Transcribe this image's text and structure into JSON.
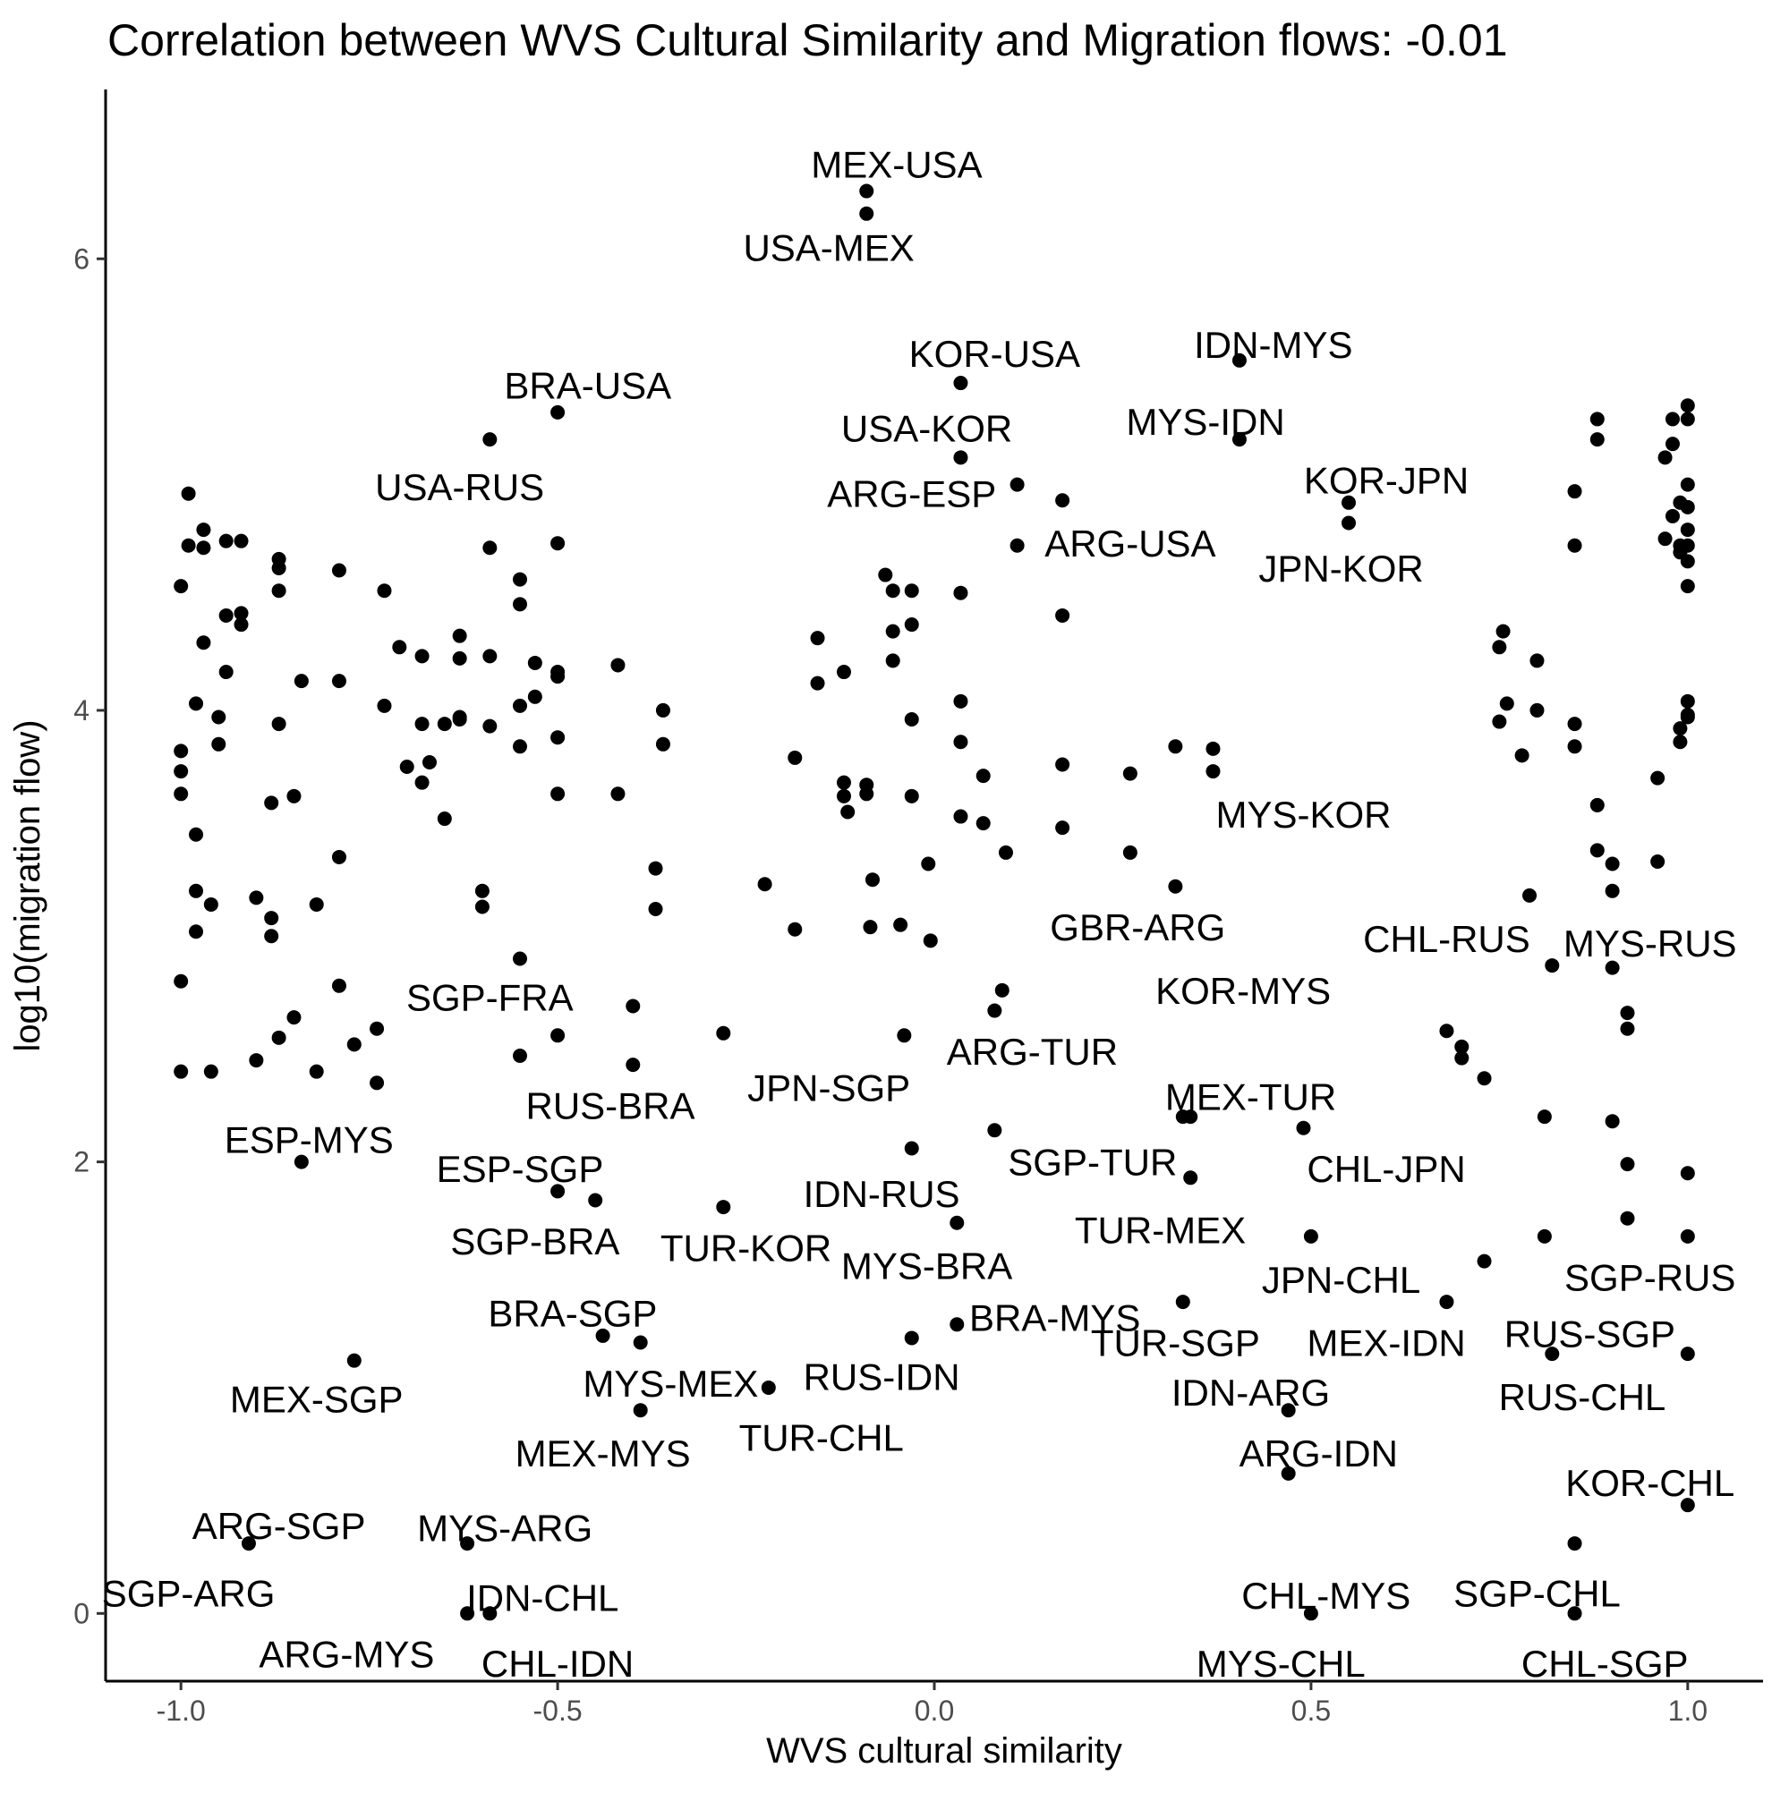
{
  "chart_data": {
    "type": "scatter",
    "title": "Correlation between WVS Cultural Similarity and Migration flows: -0.01",
    "xlabel": "WVS cultural similarity",
    "ylabel": "log10(migration flow)",
    "xlim": [
      -1.1,
      1.1
    ],
    "ylim": [
      -0.3,
      6.75
    ],
    "xticks": [
      -1.0,
      -0.5,
      0.0,
      0.5,
      1.0
    ],
    "xtick_labels": [
      "-1.0",
      "-0.5",
      "0.0",
      "0.5",
      "1.0"
    ],
    "yticks": [
      0,
      2,
      4,
      6
    ],
    "ytick_labels": [
      "0",
      "2",
      "4",
      "6"
    ],
    "grid": false,
    "legend": "none",
    "point_color": "#000000",
    "labeled_points": [
      {
        "label": "MEX-USA",
        "x": -0.09,
        "y": 6.3,
        "text_x": -0.05,
        "text_y": 6.42
      },
      {
        "label": "USA-MEX",
        "x": -0.09,
        "y": 6.2,
        "text_x": -0.14,
        "text_y": 6.05
      },
      {
        "label": "KOR-USA",
        "x": 0.035,
        "y": 5.45,
        "text_x": 0.08,
        "text_y": 5.58
      },
      {
        "label": "USA-KOR",
        "x": 0.035,
        "y": 5.12,
        "text_x": -0.01,
        "text_y": 5.25
      },
      {
        "label": "IDN-MYS",
        "x": 0.405,
        "y": 5.55,
        "text_x": 0.45,
        "text_y": 5.62
      },
      {
        "label": "MYS-IDN",
        "x": 0.405,
        "y": 5.2,
        "text_x": 0.36,
        "text_y": 5.28
      },
      {
        "label": "BRA-USA",
        "x": -0.5,
        "y": 5.32,
        "text_x": -0.46,
        "text_y": 5.44
      },
      {
        "label": "USA-RUS",
        "x": -0.59,
        "y": 5.2,
        "text_x": -0.63,
        "text_y": 4.99
      },
      {
        "label": "ARG-ESP",
        "x": 0.11,
        "y": 5.0,
        "text_x": -0.03,
        "text_y": 4.96
      },
      {
        "label": "ARG-USA",
        "x": 0.11,
        "y": 4.73,
        "text_x": 0.26,
        "text_y": 4.74
      },
      {
        "label": "KOR-JPN",
        "x": 0.55,
        "y": 4.92,
        "text_x": 0.6,
        "text_y": 5.02
      },
      {
        "label": "JPN-KOR",
        "x": 0.55,
        "y": 4.83,
        "text_x": 0.54,
        "text_y": 4.63
      },
      {
        "label": "MYS-KOR",
        "x": 0.45,
        "y": 3.45,
        "text_x": 0.49,
        "text_y": 3.54
      },
      {
        "label": "GBR-ARG",
        "x": 0.45,
        "y": 2.98,
        "text_x": 0.27,
        "text_y": 3.04
      },
      {
        "label": "KOR-MYS",
        "x": 0.45,
        "y": 2.98,
        "text_x": 0.41,
        "text_y": 2.76
      },
      {
        "label": "CHL-RUS",
        "x": 0.79,
        "y": 3.18,
        "text_x": 0.68,
        "text_y": 2.99
      },
      {
        "label": "MYS-RUS",
        "x": 0.9,
        "y": 2.86,
        "text_x": 0.95,
        "text_y": 2.97
      },
      {
        "label": "SGP-FRA",
        "x": -0.4,
        "y": 2.69,
        "text_x": -0.59,
        "text_y": 2.73
      },
      {
        "label": "RUS-BRA",
        "x": -0.4,
        "y": 2.43,
        "text_x": -0.43,
        "text_y": 2.25
      },
      {
        "label": "ARG-TUR",
        "x": 0.08,
        "y": 2.67,
        "text_x": 0.13,
        "text_y": 2.49
      },
      {
        "label": "JPN-SGP",
        "x": -0.04,
        "y": 2.56,
        "text_x": -0.14,
        "text_y": 2.33
      },
      {
        "label": "MEX-TUR",
        "x": 0.34,
        "y": 2.2,
        "text_x": 0.42,
        "text_y": 2.29
      },
      {
        "label": "ESP-MYS",
        "x": -0.84,
        "y": 2.0,
        "text_x": -0.83,
        "text_y": 2.1
      },
      {
        "label": "SGP-TUR",
        "x": 0.08,
        "y": 2.14,
        "text_x": 0.21,
        "text_y": 2.0
      },
      {
        "label": "CHL-JPN",
        "x": 0.49,
        "y": 2.15,
        "text_x": 0.6,
        "text_y": 1.97
      },
      {
        "label": "ESP-SGP",
        "x": -0.5,
        "y": 1.87,
        "text_x": -0.55,
        "text_y": 1.97
      },
      {
        "label": "IDN-RUS",
        "x": 0.03,
        "y": 1.73,
        "text_x": -0.07,
        "text_y": 1.86
      },
      {
        "label": "TUR-MEX",
        "x": 0.34,
        "y": 1.93,
        "text_x": 0.3,
        "text_y": 1.7
      },
      {
        "label": "SGP-BRA",
        "x": -0.45,
        "y": 1.83,
        "text_x": -0.53,
        "text_y": 1.65
      },
      {
        "label": "TUR-KOR",
        "x": -0.28,
        "y": 1.8,
        "text_x": -0.25,
        "text_y": 1.62
      },
      {
        "label": "MYS-BRA",
        "x": 0.03,
        "y": 1.73,
        "text_x": -0.01,
        "text_y": 1.54
      },
      {
        "label": "JPN-CHL",
        "x": 0.5,
        "y": 1.67,
        "text_x": 0.54,
        "text_y": 1.48
      },
      {
        "label": "SGP-RUS",
        "x": 1.0,
        "y": 1.67,
        "text_x": 0.95,
        "text_y": 1.49
      },
      {
        "label": "BRA-SGP",
        "x": -0.44,
        "y": 1.23,
        "text_x": -0.48,
        "text_y": 1.33
      },
      {
        "label": "BRA-MYS",
        "x": 0.03,
        "y": 1.28,
        "text_x": 0.16,
        "text_y": 1.31
      },
      {
        "label": "TUR-SGP",
        "x": 0.33,
        "y": 1.38,
        "text_x": 0.32,
        "text_y": 1.2
      },
      {
        "label": "MEX-IDN",
        "x": 0.68,
        "y": 1.38,
        "text_x": 0.6,
        "text_y": 1.2
      },
      {
        "label": "RUS-SGP",
        "x": 0.82,
        "y": 1.15,
        "text_x": 0.87,
        "text_y": 1.24
      },
      {
        "label": "MYS-MEX",
        "x": -0.39,
        "y": 1.2,
        "text_x": -0.35,
        "text_y": 1.02
      },
      {
        "label": "RUS-IDN",
        "x": -0.03,
        "y": 1.22,
        "text_x": -0.07,
        "text_y": 1.05
      },
      {
        "label": "MEX-SGP",
        "x": -0.77,
        "y": 1.12,
        "text_x": -0.82,
        "text_y": 0.95
      },
      {
        "label": "RUS-CHL",
        "x": 0.82,
        "y": 1.15,
        "text_x": 0.86,
        "text_y": 0.96
      },
      {
        "label": "IDN-ARG",
        "x": 0.47,
        "y": 0.9,
        "text_x": 0.42,
        "text_y": 0.98
      },
      {
        "label": "TUR-CHL",
        "x": -0.22,
        "y": 1.0,
        "text_x": -0.15,
        "text_y": 0.78
      },
      {
        "label": "MEX-MYS",
        "x": -0.39,
        "y": 0.9,
        "text_x": -0.44,
        "text_y": 0.71
      },
      {
        "label": "ARG-IDN",
        "x": 0.47,
        "y": 0.62,
        "text_x": 0.51,
        "text_y": 0.71
      },
      {
        "label": "KOR-CHL",
        "x": 1.0,
        "y": 0.48,
        "text_x": 0.95,
        "text_y": 0.58
      },
      {
        "label": "ARG-SGP",
        "x": -0.91,
        "y": 0.31,
        "text_x": -0.87,
        "text_y": 0.39
      },
      {
        "label": "MYS-ARG",
        "x": -0.62,
        "y": 0.31,
        "text_x": -0.57,
        "text_y": 0.38
      },
      {
        "label": "SGP-ARG",
        "x": -0.91,
        "y": 0.31,
        "text_x": -0.99,
        "text_y": 0.09
      },
      {
        "label": "SGP-CHL",
        "x": 0.85,
        "y": 0.31,
        "text_x": 0.8,
        "text_y": 0.09
      },
      {
        "label": "IDN-CHL",
        "x": -0.62,
        "y": 0.0,
        "text_x": -0.52,
        "text_y": 0.07
      },
      {
        "label": "CHL-MYS",
        "x": 0.5,
        "y": 0.0,
        "text_x": 0.52,
        "text_y": 0.08
      },
      {
        "label": "ARG-MYS",
        "x": -0.62,
        "y": 0.0,
        "text_x": -0.78,
        "text_y": -0.18
      },
      {
        "label": "CHL-IDN",
        "x": -0.59,
        "y": 0.0,
        "text_x": -0.5,
        "text_y": -0.22
      },
      {
        "label": "MYS-CHL",
        "x": 0.5,
        "y": 0.0,
        "text_x": 0.46,
        "text_y": -0.22
      },
      {
        "label": "CHL-SGP",
        "x": 0.85,
        "y": 0.0,
        "text_x": 0.89,
        "text_y": -0.22
      }
    ],
    "points": [
      [
        -0.09,
        6.3
      ],
      [
        -0.09,
        6.2
      ],
      [
        0.035,
        5.45
      ],
      [
        0.035,
        5.12
      ],
      [
        0.405,
        5.55
      ],
      [
        0.405,
        5.2
      ],
      [
        -0.5,
        5.32
      ],
      [
        -0.59,
        5.2
      ],
      [
        0.11,
        5.0
      ],
      [
        0.11,
        4.73
      ],
      [
        0.17,
        4.93
      ],
      [
        0.55,
        4.92
      ],
      [
        0.55,
        4.83
      ],
      [
        0.17,
        4.42
      ],
      [
        0.035,
        4.52
      ],
      [
        -0.065,
        4.6
      ],
      [
        -0.055,
        4.53
      ],
      [
        -0.03,
        4.53
      ],
      [
        -0.03,
        4.38
      ],
      [
        -0.055,
        4.35
      ],
      [
        -0.155,
        4.32
      ],
      [
        -0.055,
        4.22
      ],
      [
        -0.12,
        4.17
      ],
      [
        -0.155,
        4.12
      ],
      [
        0.035,
        4.04
      ],
      [
        -0.03,
        3.96
      ],
      [
        0.035,
        3.86
      ],
      [
        -0.185,
        3.79
      ],
      [
        -0.12,
        3.68
      ],
      [
        -0.09,
        3.67
      ],
      [
        -0.09,
        3.63
      ],
      [
        0.065,
        3.71
      ],
      [
        0.17,
        3.76
      ],
      [
        0.26,
        3.72
      ],
      [
        -0.12,
        3.62
      ],
      [
        -0.115,
        3.55
      ],
      [
        -0.03,
        3.62
      ],
      [
        0.035,
        3.53
      ],
      [
        0.065,
        3.5
      ],
      [
        0.17,
        3.48
      ],
      [
        -0.008,
        3.32
      ],
      [
        0.095,
        3.37
      ],
      [
        0.26,
        3.37
      ],
      [
        -0.082,
        3.25
      ],
      [
        -0.225,
        3.23
      ],
      [
        -0.185,
        3.03
      ],
      [
        -0.085,
        3.04
      ],
      [
        -0.045,
        3.05
      ],
      [
        -0.005,
        2.98
      ],
      [
        0.32,
        3.84
      ],
      [
        0.37,
        3.83
      ],
      [
        0.37,
        3.73
      ],
      [
        0.32,
        3.22
      ],
      [
        -0.99,
        4.96
      ],
      [
        -0.99,
        4.73
      ],
      [
        -1.0,
        4.55
      ],
      [
        -0.97,
        4.8
      ],
      [
        -0.97,
        4.72
      ],
      [
        -0.94,
        4.75
      ],
      [
        -0.92,
        4.75
      ],
      [
        -0.92,
        4.43
      ],
      [
        -0.92,
        4.38
      ],
      [
        -0.94,
        4.42
      ],
      [
        -0.87,
        4.67
      ],
      [
        -0.87,
        4.63
      ],
      [
        -0.87,
        4.53
      ],
      [
        -0.94,
        4.17
      ],
      [
        -0.97,
        4.3
      ],
      [
        -0.98,
        4.03
      ],
      [
        -0.95,
        3.97
      ],
      [
        -0.95,
        3.85
      ],
      [
        -0.87,
        3.94
      ],
      [
        -0.84,
        4.13
      ],
      [
        -0.79,
        4.13
      ],
      [
        -0.79,
        4.62
      ],
      [
        -0.73,
        4.53
      ],
      [
        -0.71,
        4.28
      ],
      [
        -0.68,
        4.24
      ],
      [
        -0.63,
        4.33
      ],
      [
        -0.63,
        4.23
      ],
      [
        -0.59,
        4.24
      ],
      [
        -0.55,
        4.58
      ],
      [
        -0.55,
        4.47
      ],
      [
        -0.53,
        4.21
      ],
      [
        -0.5,
        4.17
      ],
      [
        -0.5,
        4.15
      ],
      [
        -0.5,
        4.74
      ],
      [
        -0.59,
        4.72
      ],
      [
        -0.53,
        4.06
      ],
      [
        -0.55,
        4.02
      ],
      [
        -0.42,
        4.2
      ],
      [
        -0.36,
        4.0
      ],
      [
        -0.36,
        3.85
      ],
      [
        -0.73,
        4.02
      ],
      [
        -0.68,
        3.94
      ],
      [
        -0.65,
        3.94
      ],
      [
        -0.63,
        3.96
      ],
      [
        -0.63,
        3.97
      ],
      [
        -0.59,
        3.93
      ],
      [
        -0.5,
        3.88
      ],
      [
        -0.55,
        3.84
      ],
      [
        -0.67,
        3.77
      ],
      [
        -0.7,
        3.75
      ],
      [
        -0.68,
        3.68
      ],
      [
        -0.5,
        3.63
      ],
      [
        -0.42,
        3.63
      ],
      [
        -0.65,
        3.52
      ],
      [
        -1.0,
        3.82
      ],
      [
        -1.0,
        3.73
      ],
      [
        -1.0,
        3.63
      ],
      [
        -0.88,
        3.59
      ],
      [
        -0.85,
        3.62
      ],
      [
        -0.98,
        3.45
      ],
      [
        -0.79,
        3.35
      ],
      [
        -0.98,
        3.2
      ],
      [
        -0.96,
        3.14
      ],
      [
        -0.9,
        3.17
      ],
      [
        -0.88,
        3.08
      ],
      [
        -0.88,
        3.0
      ],
      [
        -0.82,
        3.14
      ],
      [
        -0.98,
        3.02
      ],
      [
        -0.6,
        3.2
      ],
      [
        -0.6,
        3.13
      ],
      [
        -0.37,
        3.3
      ],
      [
        -0.37,
        3.12
      ],
      [
        -1.0,
        2.8
      ],
      [
        -0.79,
        2.78
      ],
      [
        -0.55,
        2.9
      ],
      [
        -0.4,
        2.69
      ],
      [
        -0.85,
        2.64
      ],
      [
        -0.74,
        2.59
      ],
      [
        -0.77,
        2.52
      ],
      [
        -0.87,
        2.55
      ],
      [
        -0.9,
        2.45
      ],
      [
        -1.0,
        2.4
      ],
      [
        -0.96,
        2.4
      ],
      [
        -0.82,
        2.4
      ],
      [
        -0.74,
        2.35
      ],
      [
        -0.5,
        2.56
      ],
      [
        -0.55,
        2.47
      ],
      [
        -0.4,
        2.43
      ],
      [
        -0.28,
        2.57
      ],
      [
        -0.04,
        2.56
      ],
      [
        0.08,
        2.67
      ],
      [
        0.09,
        2.76
      ],
      [
        -0.84,
        2.0
      ],
      [
        -0.03,
        2.06
      ],
      [
        0.08,
        2.14
      ],
      [
        0.33,
        2.2
      ],
      [
        0.34,
        2.2
      ],
      [
        0.34,
        1.93
      ],
      [
        0.49,
        2.15
      ],
      [
        -0.5,
        1.87
      ],
      [
        -0.45,
        1.83
      ],
      [
        -0.28,
        1.8
      ],
      [
        0.03,
        1.73
      ],
      [
        0.5,
        1.67
      ],
      [
        -0.44,
        1.23
      ],
      [
        -0.39,
        1.2
      ],
      [
        -0.03,
        1.22
      ],
      [
        0.03,
        1.28
      ],
      [
        0.33,
        1.38
      ],
      [
        0.68,
        1.38
      ],
      [
        -0.77,
        1.12
      ],
      [
        -0.22,
        1.0
      ],
      [
        -0.39,
        0.9
      ],
      [
        0.47,
        0.9
      ],
      [
        0.47,
        0.62
      ],
      [
        -0.91,
        0.31
      ],
      [
        -0.62,
        0.31
      ],
      [
        -0.62,
        0.0
      ],
      [
        -0.59,
        0.0
      ],
      [
        0.5,
        0.0
      ],
      [
        0.85,
        0.0
      ],
      [
        0.85,
        0.31
      ],
      [
        0.88,
        5.29
      ],
      [
        0.88,
        5.2
      ],
      [
        0.85,
        4.97
      ],
      [
        0.85,
        4.73
      ],
      [
        0.98,
        5.29
      ],
      [
        1.0,
        5.29
      ],
      [
        1.0,
        5.35
      ],
      [
        0.98,
        5.18
      ],
      [
        0.97,
        5.12
      ],
      [
        1.0,
        5.0
      ],
      [
        0.99,
        4.92
      ],
      [
        1.0,
        4.9
      ],
      [
        0.98,
        4.86
      ],
      [
        1.0,
        4.8
      ],
      [
        0.97,
        4.76
      ],
      [
        0.99,
        4.73
      ],
      [
        1.0,
        4.73
      ],
      [
        0.99,
        4.7
      ],
      [
        1.0,
        4.66
      ],
      [
        1.0,
        4.55
      ],
      [
        0.755,
        4.35
      ],
      [
        0.75,
        4.28
      ],
      [
        0.8,
        4.22
      ],
      [
        0.76,
        4.03
      ],
      [
        0.8,
        4.0
      ],
      [
        0.75,
        3.95
      ],
      [
        0.85,
        3.94
      ],
      [
        0.78,
        3.8
      ],
      [
        0.85,
        3.84
      ],
      [
        1.0,
        4.04
      ],
      [
        1.0,
        3.98
      ],
      [
        1.0,
        3.97
      ],
      [
        0.99,
        3.92
      ],
      [
        0.99,
        3.86
      ],
      [
        0.96,
        3.7
      ],
      [
        0.88,
        3.58
      ],
      [
        0.88,
        3.38
      ],
      [
        0.9,
        3.32
      ],
      [
        0.96,
        3.33
      ],
      [
        0.9,
        3.2
      ],
      [
        0.79,
        3.18
      ],
      [
        0.82,
        2.87
      ],
      [
        0.9,
        2.86
      ],
      [
        0.92,
        2.66
      ],
      [
        0.92,
        2.59
      ],
      [
        0.68,
        2.58
      ],
      [
        0.7,
        2.51
      ],
      [
        0.7,
        2.46
      ],
      [
        0.73,
        2.37
      ],
      [
        0.81,
        2.2
      ],
      [
        0.9,
        2.18
      ],
      [
        0.92,
        1.99
      ],
      [
        1.0,
        1.95
      ],
      [
        0.92,
        1.75
      ],
      [
        0.81,
        1.67
      ],
      [
        1.0,
        1.67
      ],
      [
        0.73,
        1.56
      ],
      [
        0.82,
        1.15
      ],
      [
        1.0,
        1.15
      ],
      [
        1.0,
        0.48
      ]
    ]
  }
}
